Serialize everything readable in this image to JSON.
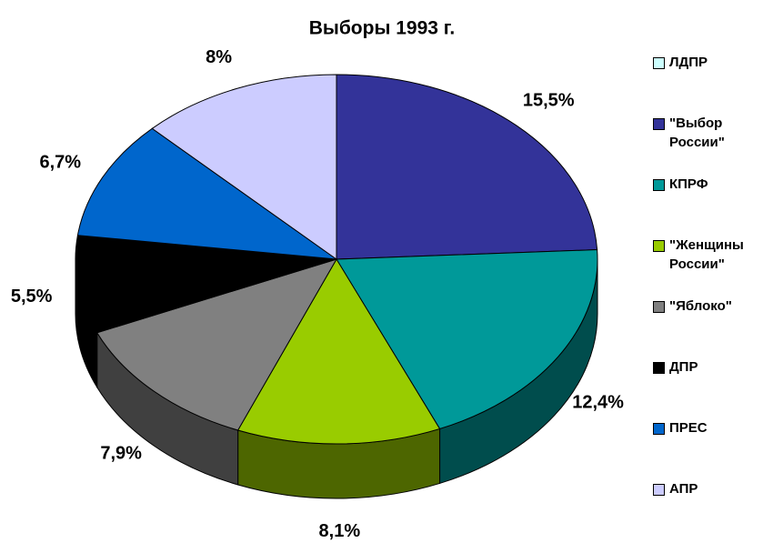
{
  "chart_data": {
    "type": "pie3d",
    "title": "Выборы 1993 г.",
    "categories": [
      "ЛДПР",
      "\"Выбор России\"",
      "КПРФ",
      "\"Женщины России\"",
      "\"Яблоко\"",
      "ДПР",
      "ПРЕС",
      "АПР"
    ],
    "values": [
      null,
      15.5,
      12.4,
      8.1,
      7.9,
      5.5,
      6.7,
      8
    ],
    "value_labels": [
      null,
      "15,5%",
      "12,4%",
      "8,1%",
      "7,9%",
      "5,5%",
      "6,7%",
      "8%"
    ],
    "colors": [
      "#ccffff",
      "#333399",
      "#009999",
      "#99cc00",
      "#808080",
      "#000000",
      "#0066cc",
      "#ccccff"
    ],
    "legend": "right"
  }
}
